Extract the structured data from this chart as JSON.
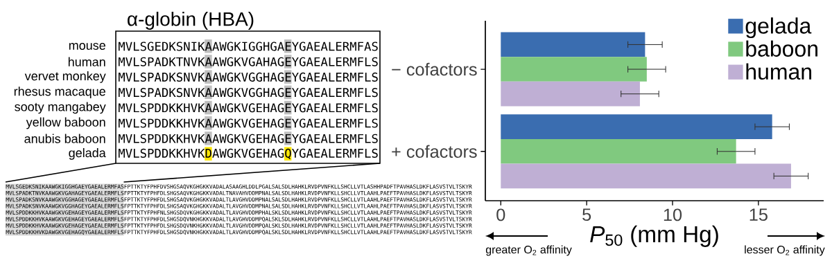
{
  "chart_data": {
    "type": "bar",
    "orientation": "horizontal",
    "categories": [
      "− cofactors",
      "+ cofactors"
    ],
    "series": [
      {
        "name": "gelada",
        "color": "#3a6db0",
        "values": [
          8.4,
          15.8
        ],
        "errors": [
          1.0,
          1.0
        ]
      },
      {
        "name": "baboon",
        "color": "#80c97f",
        "values": [
          8.5,
          13.7
        ],
        "errors": [
          1.1,
          1.1
        ]
      },
      {
        "name": "human",
        "color": "#bfafd4",
        "values": [
          8.1,
          16.9
        ],
        "errors": [
          1.1,
          1.0
        ]
      }
    ],
    "xlabel": "*P*$_{50}$ (mm Hg)",
    "xlim": [
      -0.9,
      18.8
    ],
    "xticks": [
      0,
      5,
      10,
      15
    ],
    "legend": "top right",
    "annotations": [
      "α-globin (HBA)",
      "mouse",
      "human",
      "vervet monkey",
      "rhesus macaque",
      "sooty mangabey",
      "yellow baboon",
      "anubis baboon",
      "gelada",
      "MVLSGEDKSNIKAAWGKIGGHGAEYGAEALERMFAS",
      "MVLSPADKTNVKAAWGKVGAHAGEYGAEALERMFLS",
      "MVLSPADKSNVKAAWGKVGGHAGEYGAEALERMFLS",
      "MVLSPADKSNVKAAWGKVGGHAGEYGAEALERMFLS",
      "MVLSPDDKKHVKAAWGKVGEHAGEYGAEALERMFLS",
      "MVLSPDDKKHVKAAWGKVGEHAGEYGAEALERMFLS",
      "MVLSPDDKKHVKAAWGKVGEHAGEYGAEALERMFLS",
      "MVLSPDDKKHVKDAWGKVGEHAGQYGAEALERMFLS",
      "MVLSGEDKSNIKAAWGKIGGHGAEYGAEALERMFASFPTTKTYFPHFDVSHGSAQVKGHGKKVADALASAAGHLDDLPGALSALSDLHAHKLRVDPVNFKLLSHCLLVTLASHHPADFTPAVHASLDKFLASVSTVLTSKYR",
      "MVLSPADKTNVKAAWGKVGAHAGEYGAEALERMFLSFPTTKTYFPHFDLSHGSAQVKGHGKKVADALTNAVAHVDDMPNALSALSDLHAHKLRVDPVNFKLLSHCLLVTLAAHLPAEFTPAVHASLDKFLASVSTVLTSKYR",
      "MVLSPADKSNVKAAWGKVGGHAGEYGAEALERMFLSFPTTKTYFPHFDLSHGSAQVKGHGKKVADALTLAVGHVDDMPNALSALSDLHAHKLRVDPVNFKLLSHCLLVTLAAHLPAEFTPAVHASLDKFLASVSTVLTSKYR",
      "MVLSPADKSNVKAAWGKVGGHAGEYGAEALERMFLSFPTTKTYFPHFDLSHGSAQVKGHGKKVADALTLAVGHVDDMPNALSALSDLHAHKLRVDPVNFKLLSHCLLVTLAAHLPAEFTPAVHASLDKFLASVSTVLTSKYR",
      "MVLSPDDKKHVKAAWGKVGEHAGEYGAEALERMFLSFPTTKTYFPHFNLSHGSDQVKGHGKKVADALTLAVGHVDDMPHALSKLSDLHAHKLRVDPVNFKLLSHCLLVTLAAHLPAEFTPAVHASLDKFLASVSTVLTSKYR",
      "MVLSPDDKKHVKAAWGKVGEHAGEYGAEALERMFLSFPTTKTYFPHFDLSHGSDQVNKHGKKVADALTLAVGHVDDMPQALSKLSDLHAHKLRVDPVNFKLLSHCLLVTLAAHLPAEFTPAVHASLDKFLASVSTVLTSKYR",
      "MVLSPDDKKHVKAAWGKVGEHAGEYGAEALERMFLSFPTTKTYFPHFDLSHGSDQVNKHGKKVADALTLAVGHVDDMPQALSKLSDLHAHKLRVDPVNFKLLSHCLLVTLAAHLPAEFTPAVHASLDKFLASVSTVLTSKYR",
      "MVLSPDDKKHVKDAWGKVGEHAGQYGAEALERMFLSFPTTKTYFPHFDLSHGSDQVNKHGKKVADALTLAVGHVDDMPQALSKLSDLHAHKLRVDPVNFKLLSHCLLVTLAAHLPAEFTPAVHASLDKFLASVSTVLTSKYR",
      "greater O$_{2}$ affinity",
      "lesser O$_{2}$ affinity"
    ]
  }
}
